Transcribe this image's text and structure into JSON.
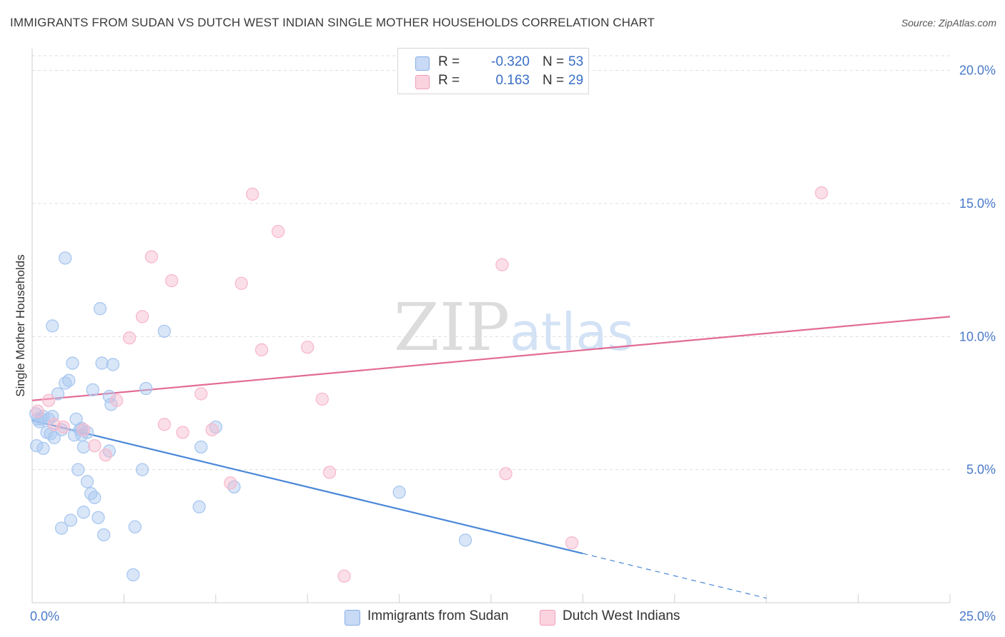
{
  "title": "IMMIGRANTS FROM SUDAN VS DUTCH WEST INDIAN SINGLE MOTHER HOUSEHOLDS CORRELATION CHART",
  "source": "Source: ZipAtlas.com",
  "watermark": {
    "zip": "ZIP",
    "atlas": "atlas"
  },
  "legend": {
    "rows": [
      {
        "r_label": "R =",
        "r_value": "-0.320",
        "n_label": "N =",
        "n_value": "53",
        "color": "#a9c7f0"
      },
      {
        "r_label": "R =",
        "r_value": "0.163",
        "n_label": "N =",
        "n_value": "29",
        "color": "#f7b9cb"
      }
    ]
  },
  "bottom_legend": [
    {
      "label": "Immigrants from Sudan",
      "color": "#a9c7f0"
    },
    {
      "label": "Dutch West Indians",
      "color": "#f7b9cb"
    }
  ],
  "chart_data": {
    "type": "scatter",
    "title": "IMMIGRANTS FROM SUDAN VS DUTCH WEST INDIAN SINGLE MOTHER HOUSEHOLDS CORRELATION CHART",
    "xlabel": "",
    "ylabel": "Single Mother Households",
    "xlim": [
      0,
      25
    ],
    "ylim": [
      0,
      20.5
    ],
    "x_tick_labels": [
      "0.0%",
      "25.0%"
    ],
    "y_ticks": [
      5,
      10,
      15,
      20
    ],
    "y_tick_labels": [
      "5.0%",
      "10.0%",
      "15.0%",
      "20.0%"
    ],
    "grid": true,
    "series": [
      {
        "name": "Immigrants from Sudan",
        "color": "#4a87d8",
        "fill": "#a9c7f0",
        "points": [
          [
            0.1,
            7.1
          ],
          [
            0.15,
            6.9
          ],
          [
            0.2,
            6.8
          ],
          [
            0.25,
            6.9
          ],
          [
            0.3,
            7.0
          ],
          [
            0.12,
            5.9
          ],
          [
            0.3,
            5.8
          ],
          [
            0.4,
            6.4
          ],
          [
            0.45,
            6.9
          ],
          [
            0.5,
            6.35
          ],
          [
            0.55,
            7.0
          ],
          [
            0.6,
            6.2
          ],
          [
            0.7,
            7.85
          ],
          [
            0.8,
            6.5
          ],
          [
            0.9,
            8.25
          ],
          [
            0.55,
            10.4
          ],
          [
            0.9,
            12.95
          ],
          [
            1.0,
            8.35
          ],
          [
            1.1,
            9.0
          ],
          [
            1.15,
            6.3
          ],
          [
            1.2,
            6.9
          ],
          [
            1.25,
            5.0
          ],
          [
            1.3,
            6.5
          ],
          [
            1.35,
            6.3
          ],
          [
            1.4,
            5.85
          ],
          [
            1.5,
            6.4
          ],
          [
            1.5,
            4.55
          ],
          [
            1.6,
            4.1
          ],
          [
            1.65,
            8.0
          ],
          [
            1.7,
            3.95
          ],
          [
            1.8,
            3.2
          ],
          [
            1.85,
            11.05
          ],
          [
            1.9,
            9.0
          ],
          [
            1.95,
            2.55
          ],
          [
            2.1,
            7.75
          ],
          [
            2.1,
            5.7
          ],
          [
            2.15,
            7.45
          ],
          [
            2.2,
            8.95
          ],
          [
            1.4,
            3.4
          ],
          [
            1.05,
            3.1
          ],
          [
            0.8,
            2.8
          ],
          [
            2.8,
            2.85
          ],
          [
            2.75,
            1.05
          ],
          [
            3.0,
            5.0
          ],
          [
            3.1,
            8.05
          ],
          [
            3.6,
            10.2
          ],
          [
            4.55,
            3.6
          ],
          [
            4.6,
            5.85
          ],
          [
            5.0,
            6.6
          ],
          [
            5.5,
            4.35
          ],
          [
            10.0,
            4.15
          ],
          [
            11.8,
            2.35
          ],
          [
            1.35,
            6.55
          ]
        ],
        "trend": {
          "x0": 0,
          "y0": 6.85,
          "x1": 15.0,
          "y1": 1.85,
          "dashed_to_x": 20.0,
          "dashed_to_y": 0.17
        }
      },
      {
        "name": "Dutch West Indians",
        "color": "#e26b95",
        "fill": "#f7b9cb",
        "points": [
          [
            0.15,
            7.2
          ],
          [
            0.45,
            7.6
          ],
          [
            0.6,
            6.7
          ],
          [
            0.85,
            6.6
          ],
          [
            1.4,
            6.5
          ],
          [
            1.7,
            5.9
          ],
          [
            2.0,
            5.55
          ],
          [
            2.3,
            7.6
          ],
          [
            2.65,
            9.95
          ],
          [
            3.0,
            10.75
          ],
          [
            3.25,
            13.0
          ],
          [
            3.6,
            6.7
          ],
          [
            3.8,
            12.1
          ],
          [
            4.1,
            6.4
          ],
          [
            4.6,
            7.85
          ],
          [
            4.9,
            6.5
          ],
          [
            5.4,
            4.5
          ],
          [
            5.7,
            12.0
          ],
          [
            6.0,
            15.35
          ],
          [
            6.25,
            9.5
          ],
          [
            6.7,
            13.95
          ],
          [
            7.5,
            9.6
          ],
          [
            7.9,
            7.65
          ],
          [
            8.1,
            4.9
          ],
          [
            8.5,
            1.0
          ],
          [
            12.8,
            12.7
          ],
          [
            12.9,
            4.85
          ],
          [
            14.7,
            2.25
          ],
          [
            21.5,
            15.4
          ]
        ],
        "trend": {
          "x0": 0,
          "y0": 7.6,
          "x1": 25.0,
          "y1": 10.75
        }
      }
    ]
  }
}
